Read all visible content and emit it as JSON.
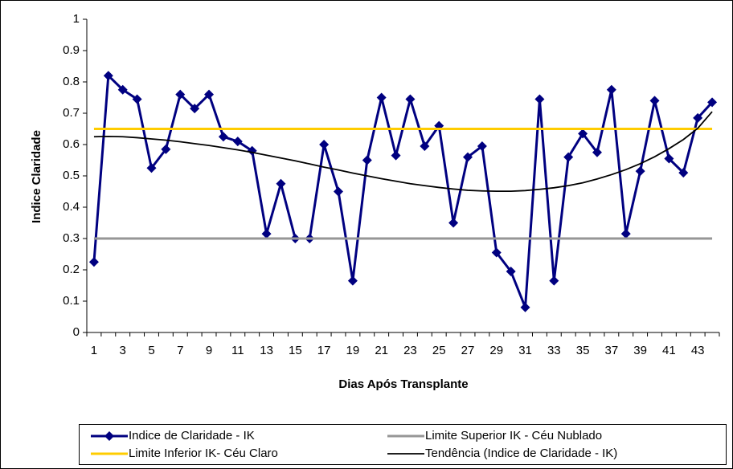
{
  "chart_data": {
    "type": "line",
    "xlabel": "Dias Após Transplante",
    "ylabel": "Indice Claridade",
    "categories": [
      1,
      null,
      3,
      null,
      5,
      null,
      7,
      null,
      9,
      null,
      11,
      null,
      13,
      null,
      15,
      null,
      17,
      null,
      19,
      null,
      21,
      null,
      23,
      null,
      25,
      null,
      27,
      null,
      29,
      null,
      31,
      null,
      33,
      null,
      35,
      null,
      37,
      null,
      39,
      null,
      41,
      null,
      43,
      null
    ],
    "ylim": [
      0,
      1
    ],
    "yticks": [
      0,
      0.1,
      0.2,
      0.3,
      0.4,
      0.5,
      0.6,
      0.7,
      0.8,
      0.9,
      1
    ],
    "legend": "bottom",
    "series": [
      {
        "name": "Indice de Claridade - IK",
        "color": "#000080",
        "marker": "diamond",
        "values": [
          0.225,
          0.82,
          0.775,
          0.745,
          0.525,
          0.585,
          0.76,
          0.715,
          0.76,
          0.625,
          0.61,
          0.58,
          0.315,
          0.475,
          0.3,
          0.3,
          0.6,
          0.45,
          0.165,
          0.55,
          0.75,
          0.565,
          0.745,
          0.595,
          0.66,
          0.35,
          0.56,
          0.595,
          0.255,
          0.195,
          0.08,
          0.745,
          0.165,
          0.56,
          0.635,
          0.575,
          0.775,
          0.315,
          0.515,
          0.74,
          0.555,
          0.51,
          0.685,
          0.735
        ]
      },
      {
        "name": "Limite Superior IK - Céu Nublado",
        "color": "#969696",
        "values": [
          0.3,
          0.3,
          0.3,
          0.3,
          0.3,
          0.3,
          0.3,
          0.3,
          0.3,
          0.3,
          0.3,
          0.3,
          0.3,
          0.3,
          0.3,
          0.3,
          0.3,
          0.3,
          0.3,
          0.3,
          0.3,
          0.3,
          0.3,
          0.3,
          0.3,
          0.3,
          0.3,
          0.3,
          0.3,
          0.3,
          0.3,
          0.3,
          0.3,
          0.3,
          0.3,
          0.3,
          0.3,
          0.3,
          0.3,
          0.3,
          0.3,
          0.3,
          0.3,
          0.3
        ]
      },
      {
        "name": "Limite Inferior IK- Céu Claro",
        "color": "#FFCC00",
        "values": [
          0.65,
          0.65,
          0.65,
          0.65,
          0.65,
          0.65,
          0.65,
          0.65,
          0.65,
          0.65,
          0.65,
          0.65,
          0.65,
          0.65,
          0.65,
          0.65,
          0.65,
          0.65,
          0.65,
          0.65,
          0.65,
          0.65,
          0.65,
          0.65,
          0.65,
          0.65,
          0.65,
          0.65,
          0.65,
          0.65,
          0.65,
          0.65,
          0.65,
          0.65,
          0.65,
          0.65,
          0.65,
          0.65,
          0.65,
          0.65,
          0.65,
          0.65,
          0.65,
          0.65
        ]
      },
      {
        "name": "Tendência (Indice de Claridade - IK)",
        "color": "#000000",
        "values": [
          0.625,
          0.626,
          0.625,
          0.622,
          0.618,
          0.614,
          0.609,
          0.603,
          0.597,
          0.59,
          0.583,
          0.575,
          0.566,
          0.557,
          0.548,
          0.538,
          0.528,
          0.519,
          0.509,
          0.5,
          0.491,
          0.483,
          0.475,
          0.469,
          0.463,
          0.458,
          0.454,
          0.452,
          0.451,
          0.451,
          0.453,
          0.457,
          0.462,
          0.469,
          0.478,
          0.49,
          0.504,
          0.52,
          0.539,
          0.561,
          0.587,
          0.616,
          0.652,
          0.705
        ]
      }
    ]
  }
}
